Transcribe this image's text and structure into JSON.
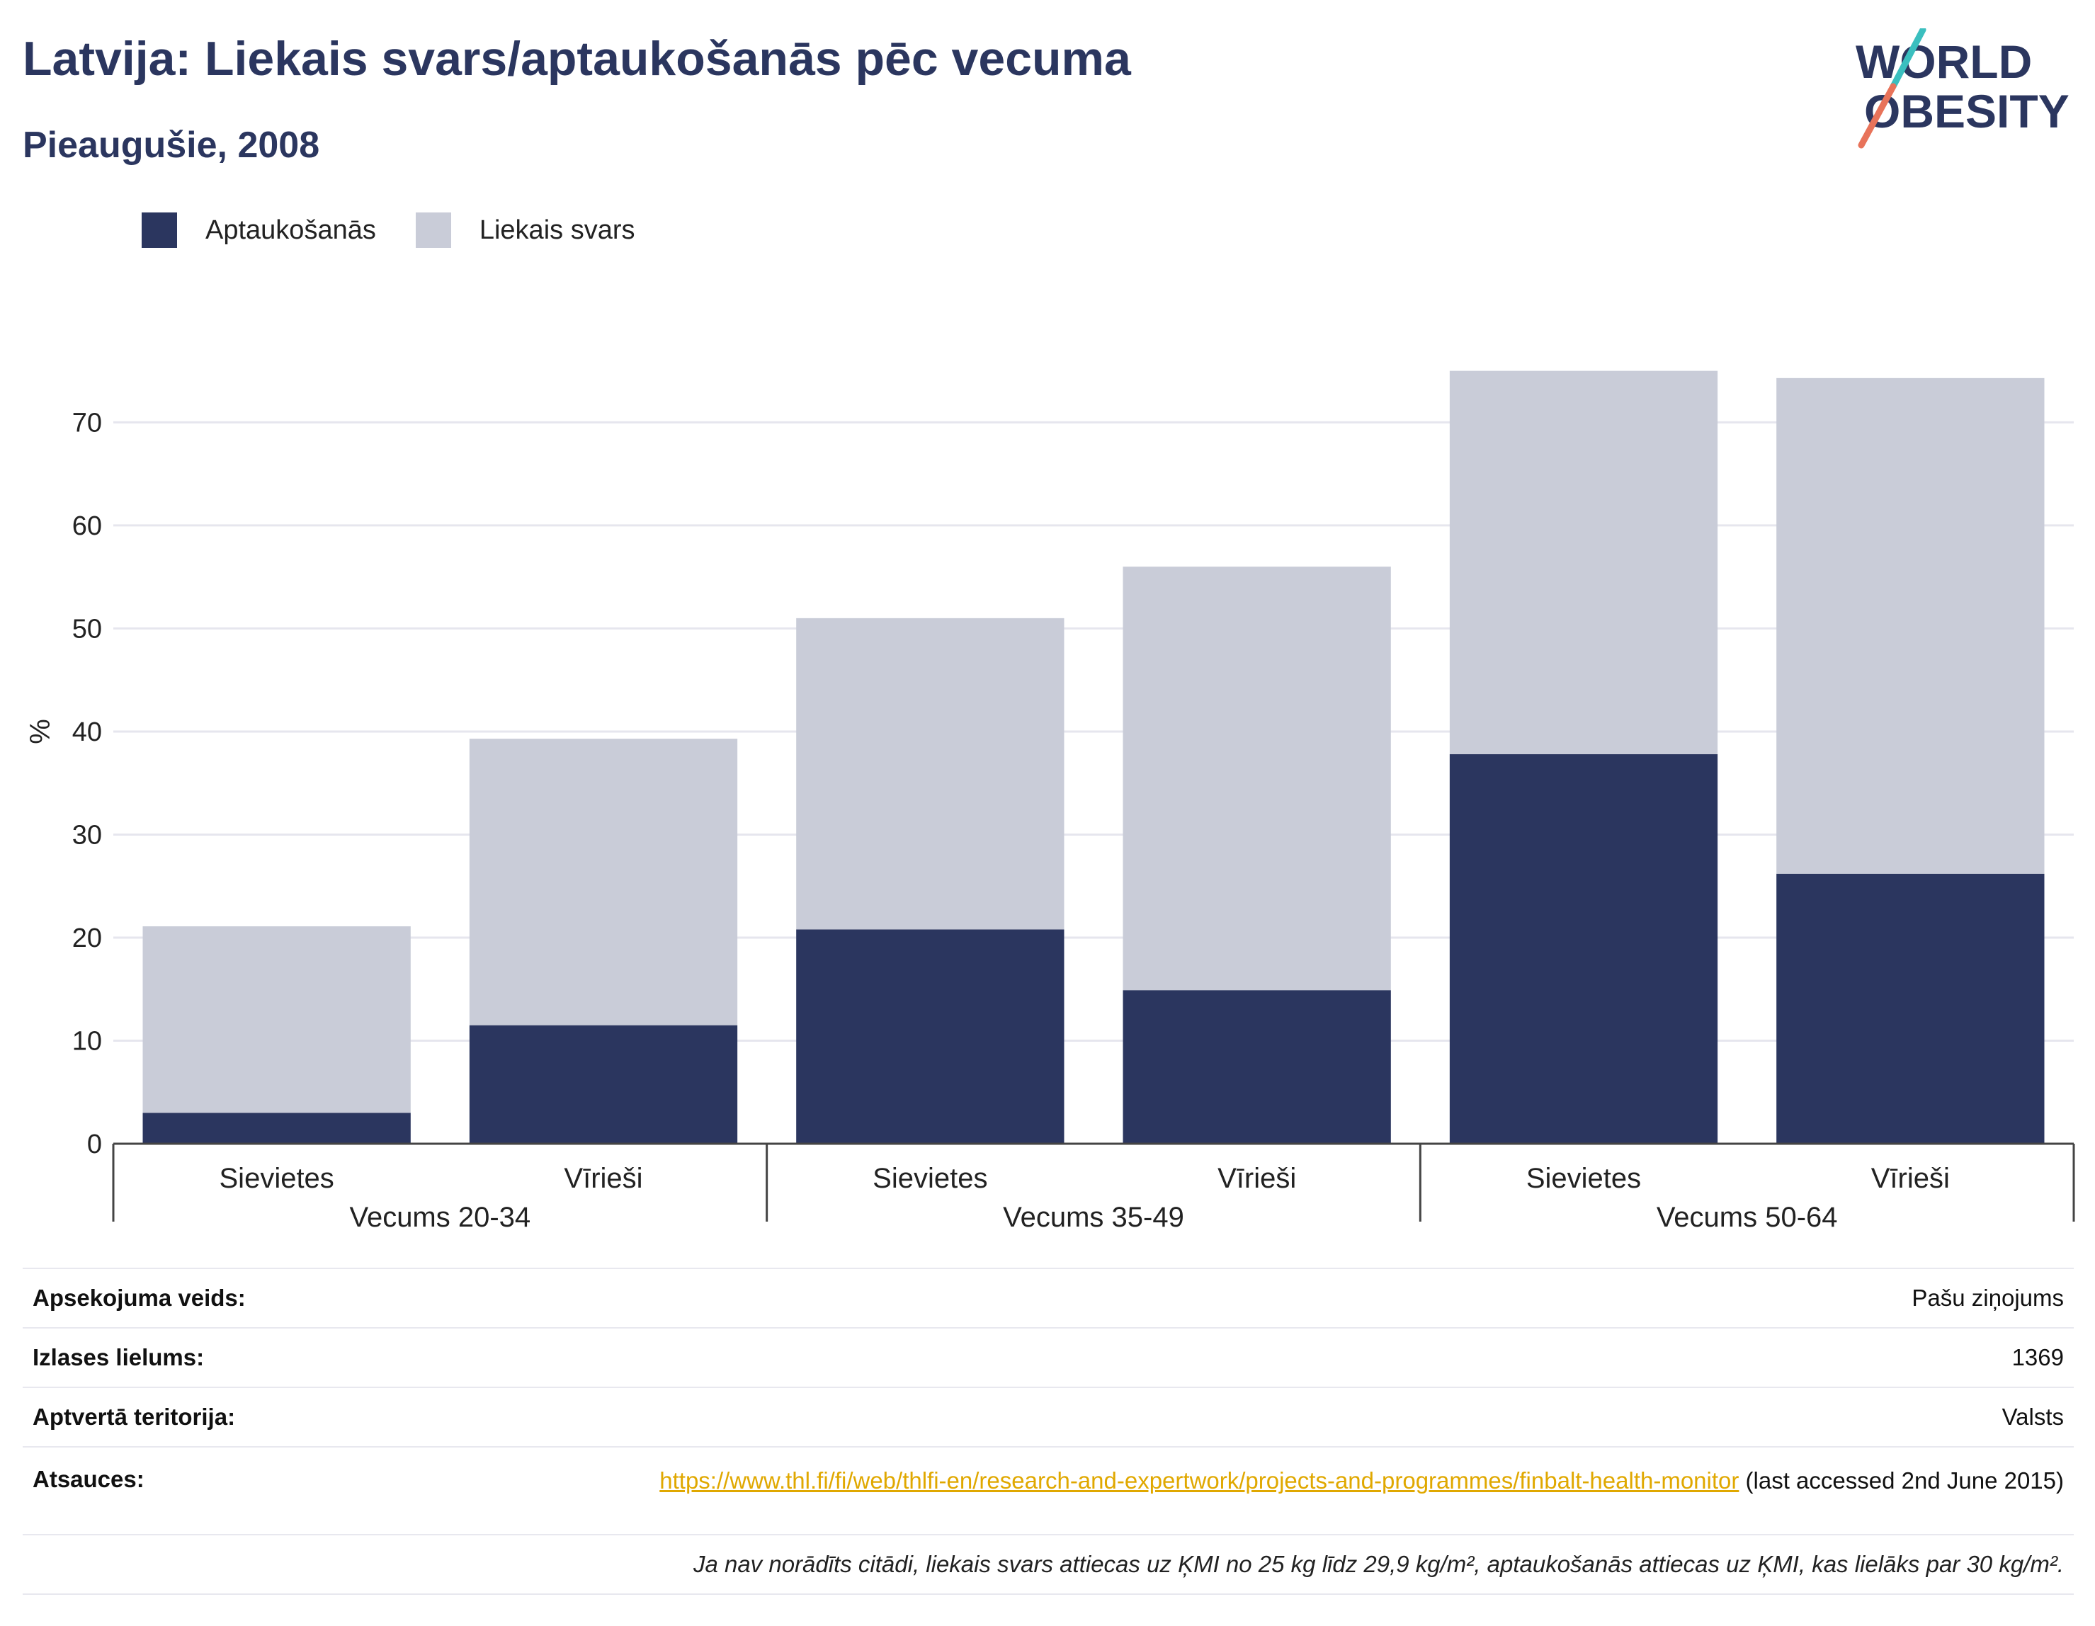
{
  "header": {
    "title": "Latvija: Liekais svars/aptaukošanās pēc vecuma",
    "subtitle": "Pieaugušie, 2008"
  },
  "logo": {
    "line1": "WORLD",
    "line2": "OBESITY",
    "colors": {
      "text": "#2b365f",
      "slash_teal": "#3bbfbf",
      "slash_coral": "#e8735a"
    }
  },
  "legend": {
    "items": [
      {
        "label": "Aptaukošanās",
        "color": "#2b365f"
      },
      {
        "label": "Liekais svars",
        "color": "#c9ccd8"
      }
    ]
  },
  "chart_data": {
    "type": "bar",
    "stacked": true,
    "ylabel": "%",
    "ylim": [
      0,
      78
    ],
    "yticks": [
      0,
      10,
      20,
      30,
      40,
      50,
      60,
      70
    ],
    "grid": true,
    "groups": [
      {
        "label": "Vecums 20-34",
        "categories": [
          "Sievietes",
          "Vīrieši"
        ]
      },
      {
        "label": "Vecums 35-49",
        "categories": [
          "Sievietes",
          "Vīrieši"
        ]
      },
      {
        "label": "Vecums 50-64",
        "categories": [
          "Sievietes",
          "Vīrieši"
        ]
      }
    ],
    "series": [
      {
        "name": "Aptaukošanās",
        "color": "#2b365f",
        "values": [
          3.0,
          11.5,
          20.8,
          14.9,
          37.8,
          26.2
        ]
      },
      {
        "name": "Liekais svars",
        "color": "#c9ccd8",
        "values": [
          18.1,
          27.8,
          30.2,
          41.1,
          37.2,
          48.1
        ]
      }
    ]
  },
  "info": {
    "survey_type_label": "Apsekojuma veids:",
    "survey_type_value": "Pašu ziņojums",
    "sample_size_label": "Izlases lielums:",
    "sample_size_value": "1369",
    "coverage_label": "Aptvertā teritorija:",
    "coverage_value": "Valsts",
    "references_label": "Atsauces:",
    "references_link": "https://www.thl.fi/fi/web/thlfi-en/research-and-expertwork/projects-and-programmes/finbalt-health-monitor",
    "references_suffix": " (last accessed 2nd June 2015)",
    "note": "Ja nav norādīts citādi, liekais svars attiecas uz ĶMI no 25 kg līdz 29,9 kg/m², aptaukošanās attiecas uz ĶMI, kas lielāks par 30 kg/m²."
  }
}
